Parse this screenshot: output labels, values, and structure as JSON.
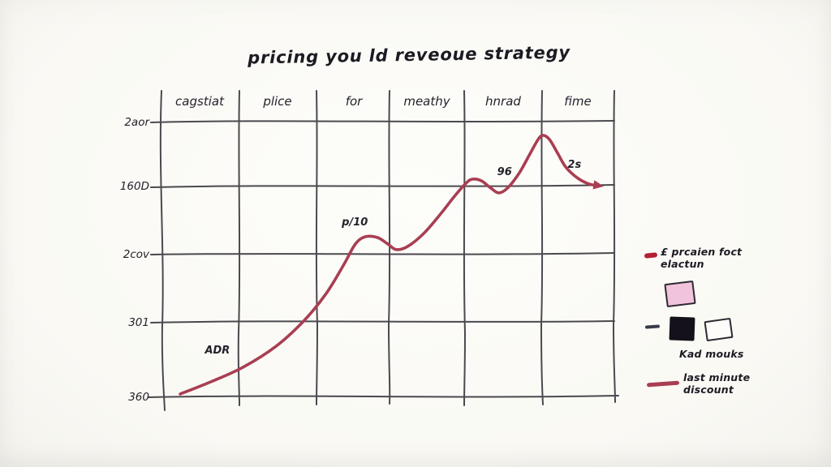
{
  "title": "pricing you ld reveoue strategy",
  "chart_data": {
    "type": "line",
    "title": "pricing you ld reveoue strategy",
    "x_categories": [
      "cagstiat",
      "plice",
      "for",
      "meathy",
      "hnrad",
      "fime"
    ],
    "y_tick_labels": [
      "2aor",
      "160D",
      "2cov",
      "301",
      "360"
    ],
    "grid": true,
    "legend_position": "right",
    "series": [
      {
        "name": "last minute discount",
        "color": "#a93e52",
        "arrow_end": true,
        "points": [
          [
            0.043,
            0.006
          ],
          [
            0.114,
            0.053
          ],
          [
            0.182,
            0.104
          ],
          [
            0.254,
            0.18
          ],
          [
            0.315,
            0.272
          ],
          [
            0.365,
            0.373
          ],
          [
            0.404,
            0.479
          ],
          [
            0.429,
            0.553
          ],
          [
            0.451,
            0.58
          ],
          [
            0.478,
            0.577
          ],
          [
            0.501,
            0.553
          ],
          [
            0.519,
            0.533
          ],
          [
            0.544,
            0.544
          ],
          [
            0.58,
            0.592
          ],
          [
            0.617,
            0.663
          ],
          [
            0.648,
            0.728
          ],
          [
            0.673,
            0.775
          ],
          [
            0.687,
            0.79
          ],
          [
            0.707,
            0.784
          ],
          [
            0.728,
            0.757
          ],
          [
            0.746,
            0.74
          ],
          [
            0.766,
            0.76
          ],
          [
            0.791,
            0.814
          ],
          [
            0.814,
            0.882
          ],
          [
            0.832,
            0.935
          ],
          [
            0.843,
            0.95
          ],
          [
            0.857,
            0.935
          ],
          [
            0.875,
            0.885
          ],
          [
            0.893,
            0.834
          ],
          [
            0.92,
            0.793
          ],
          [
            0.945,
            0.772
          ],
          [
            0.968,
            0.766
          ]
        ]
      }
    ],
    "annotations": [
      {
        "text": "ADR",
        "x": 0.125,
        "y": 0.154
      },
      {
        "text": "p/10",
        "x": 0.428,
        "y": 0.621
      },
      {
        "text": "96",
        "x": 0.758,
        "y": 0.805
      },
      {
        "text": "2s",
        "x": 0.912,
        "y": 0.831
      }
    ]
  },
  "legend": {
    "item1_line1": "£ prcaien foct",
    "item1_line2": "elactun",
    "marks_label": "Kad mouks",
    "discount_line1": "last minute",
    "discount_line2": "discount"
  },
  "colors": {
    "curve_red": "#a93e52",
    "legend_red": "#b32133",
    "ink": "#2a2730",
    "pink_swatch": "#f2c4dc",
    "black_swatch": "#14111a"
  }
}
